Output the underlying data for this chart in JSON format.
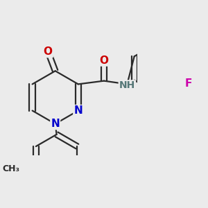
{
  "bg_color": "#ebebeb",
  "bond_color": "#2a2a2a",
  "bond_width": 1.6,
  "atom_colors": {
    "N": "#0000cc",
    "O": "#cc0000",
    "F": "#cc00aa",
    "NH": "#557777",
    "C": "#2a2a2a"
  },
  "font_size": 11,
  "figsize": [
    3.0,
    3.0
  ],
  "dpi": 100
}
